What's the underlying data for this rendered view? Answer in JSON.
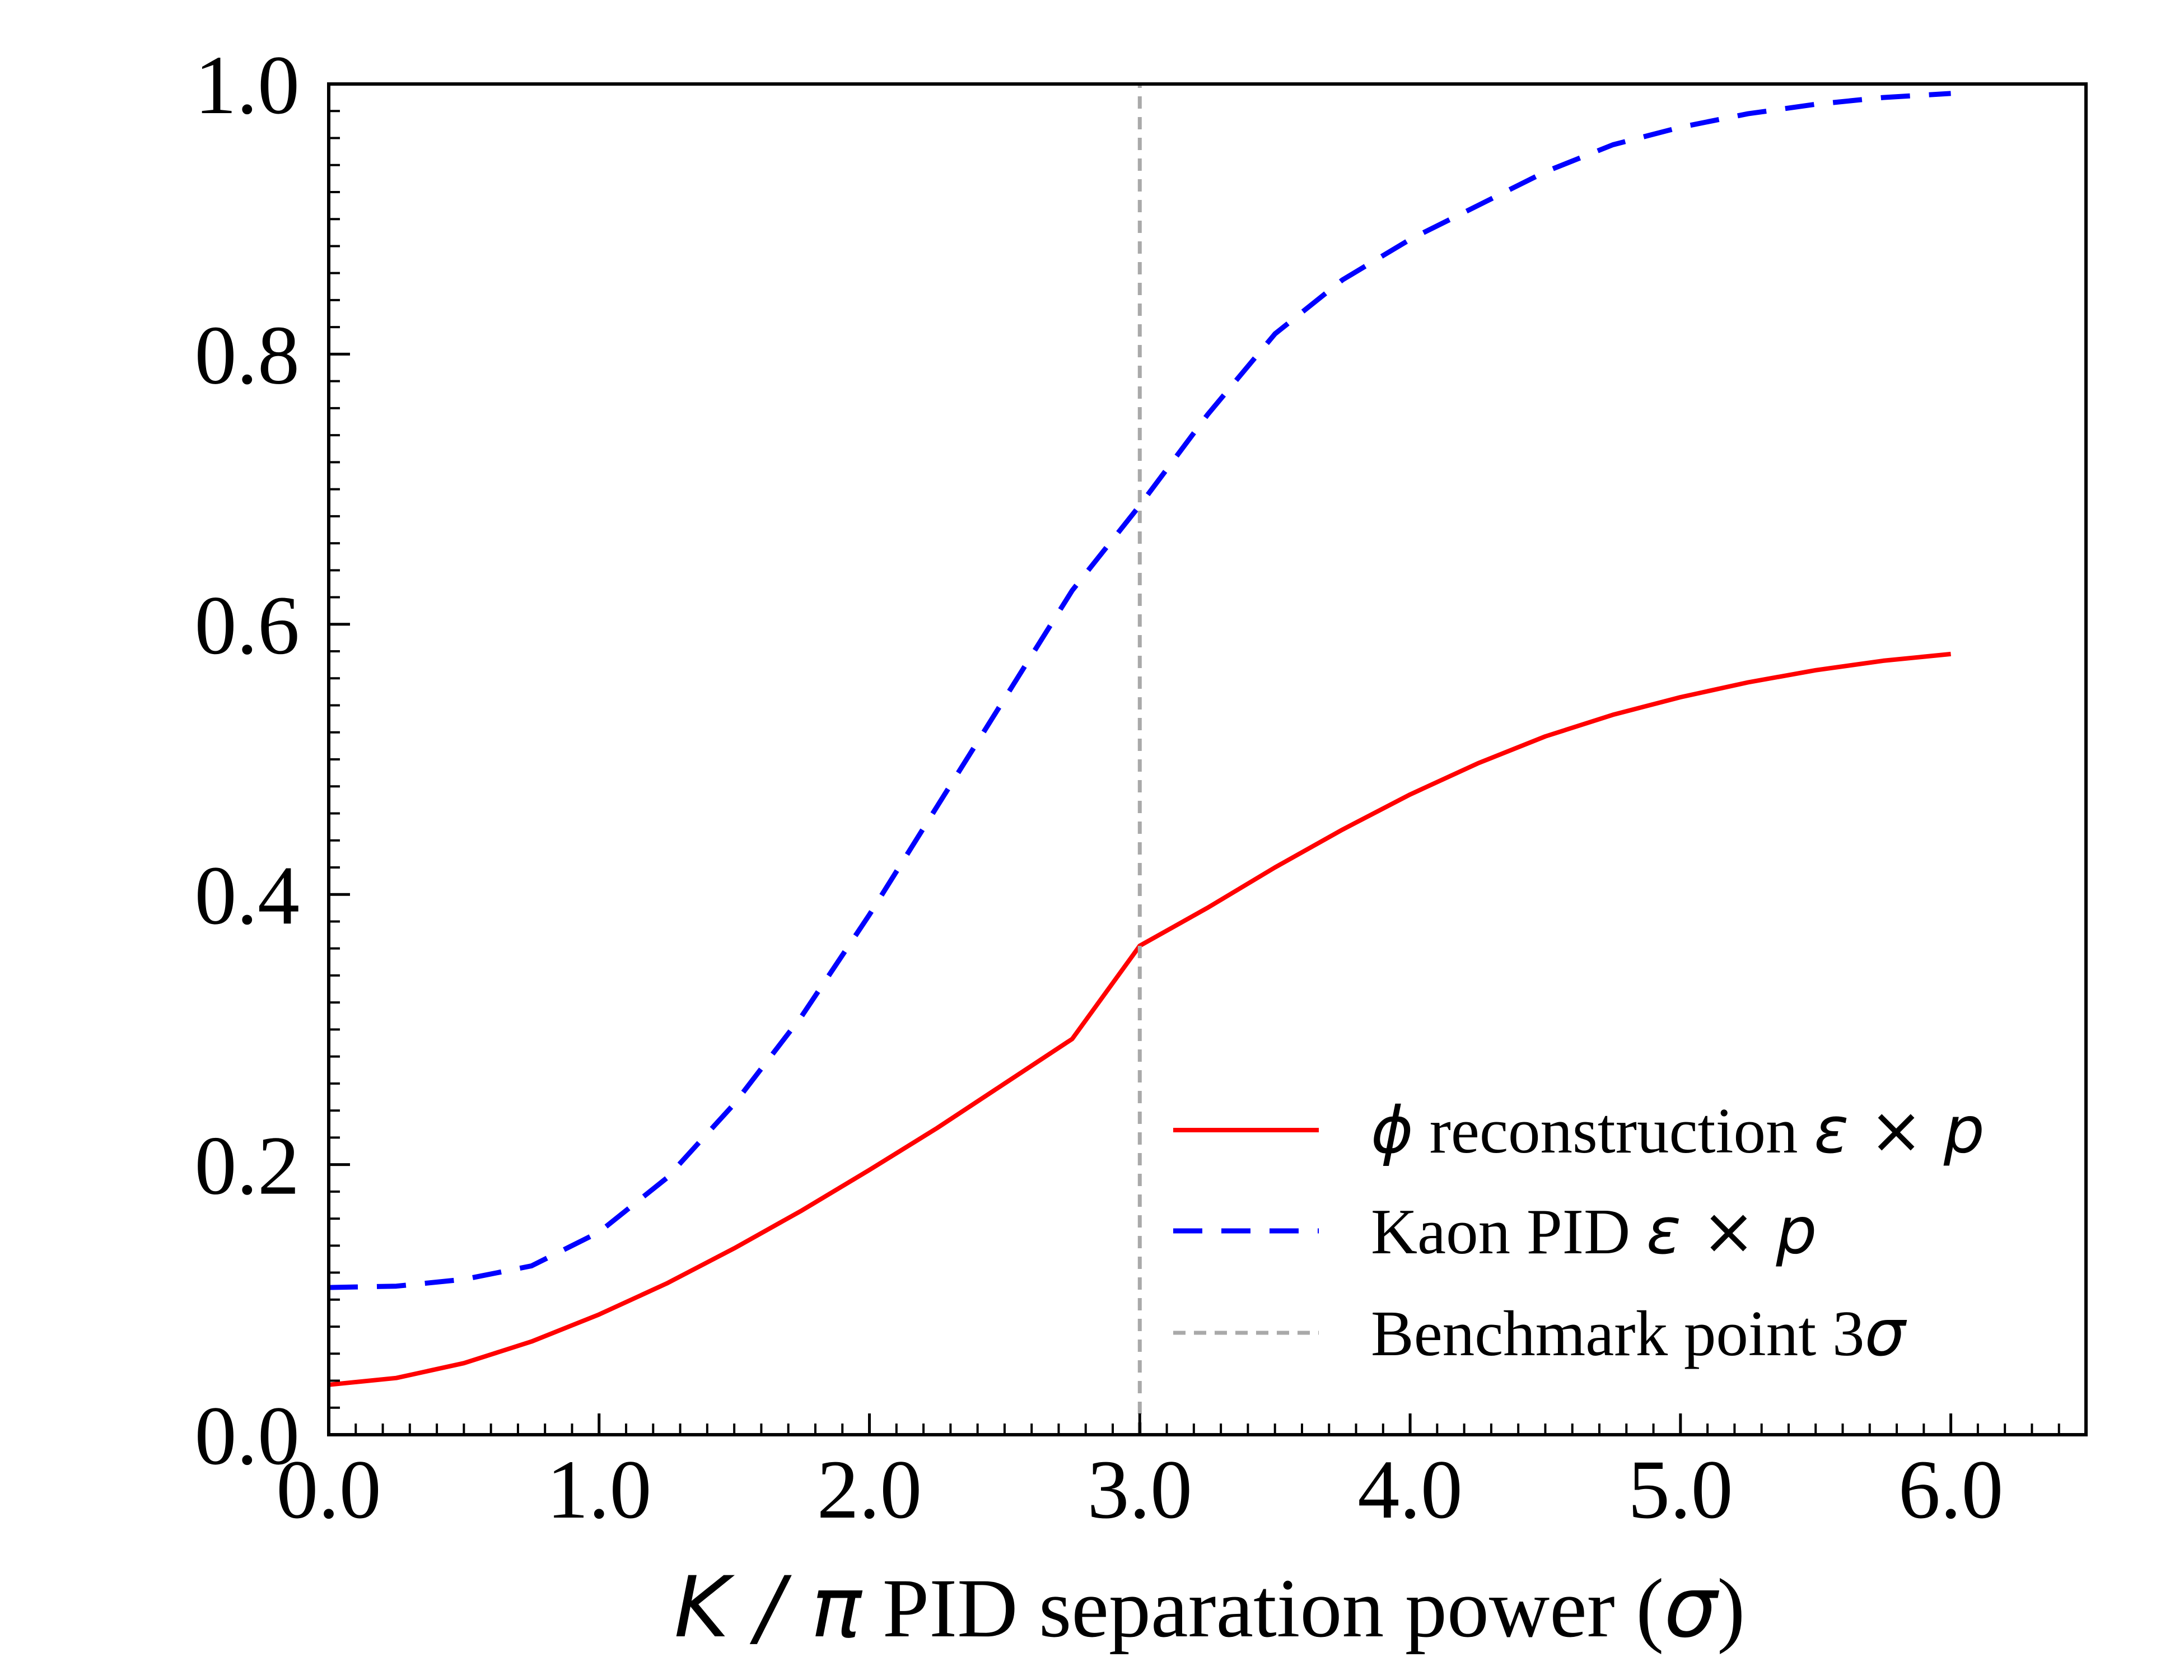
{
  "chart_data": {
    "type": "line",
    "title": "",
    "xlabel_parts": [
      {
        "text": "K",
        "math": true
      },
      {
        "text": " / ",
        "math": true
      },
      {
        "text": "π",
        "math": true
      },
      {
        "text": " PID separation power (",
        "math": false
      },
      {
        "text": "σ",
        "math": true
      },
      {
        "text": ")",
        "math": false
      }
    ],
    "ylabel": "",
    "xlim": [
      0.0,
      6.5
    ],
    "ylim": [
      0.0,
      1.0
    ],
    "x_ticks": [
      "0.0",
      "1.0",
      "2.0",
      "3.0",
      "4.0",
      "5.0",
      "6.0"
    ],
    "x_tick_values": [
      0,
      1,
      2,
      3,
      4,
      5,
      6
    ],
    "y_ticks": [
      "0.0",
      "0.2",
      "0.4",
      "0.6",
      "0.8",
      "1.0"
    ],
    "y_tick_values": [
      0.0,
      0.2,
      0.4,
      0.6,
      0.8,
      1.0
    ],
    "grid": false,
    "legend_position": "lower-right",
    "series": [
      {
        "label_parts": [
          {
            "text": "ϕ",
            "math": true
          },
          {
            "text": " reconstruction ",
            "math": false
          },
          {
            "text": "ε × p",
            "math": true
          }
        ],
        "color": "#ff0000",
        "style": "solid",
        "x": [
          0.0,
          0.25,
          0.5,
          0.75,
          1.0,
          1.25,
          1.5,
          1.75,
          2.0,
          2.25,
          2.5,
          2.75,
          3.0,
          3.25,
          3.5,
          3.75,
          4.0,
          4.25,
          4.5,
          4.75,
          5.0,
          5.25,
          5.5,
          5.75,
          6.0
        ],
        "y": [
          0.037,
          0.042,
          0.053,
          0.069,
          0.089,
          0.112,
          0.138,
          0.166,
          0.196,
          0.227,
          0.26,
          0.293,
          0.362,
          0.39,
          0.42,
          0.448,
          0.474,
          0.497,
          0.517,
          0.533,
          0.546,
          0.557,
          0.566,
          0.573,
          0.578
        ]
      },
      {
        "label_parts": [
          {
            "text": "Kaon PID ",
            "math": false
          },
          {
            "text": "ε × p",
            "math": true
          }
        ],
        "color": "#0000ff",
        "style": "dashed",
        "x": [
          0.0,
          0.25,
          0.5,
          0.75,
          1.0,
          1.25,
          1.5,
          1.75,
          2.0,
          2.25,
          2.5,
          2.75,
          3.0,
          3.25,
          3.5,
          3.75,
          4.0,
          4.25,
          4.5,
          4.75,
          5.0,
          5.25,
          5.5,
          5.75,
          6.0
        ],
        "y": [
          0.109,
          0.11,
          0.115,
          0.125,
          0.15,
          0.19,
          0.245,
          0.31,
          0.385,
          0.465,
          0.545,
          0.625,
          0.688,
          0.755,
          0.815,
          0.855,
          0.885,
          0.91,
          0.935,
          0.955,
          0.968,
          0.978,
          0.985,
          0.99,
          0.993
        ]
      },
      {
        "label_parts": [
          {
            "text": "Benchmark point 3",
            "math": false
          },
          {
            "text": "σ",
            "math": true
          }
        ],
        "color": "#a9a9a9",
        "style": "dashed-vertical",
        "x": [
          3.0,
          3.0
        ],
        "y": [
          0.0,
          1.0
        ]
      }
    ]
  }
}
